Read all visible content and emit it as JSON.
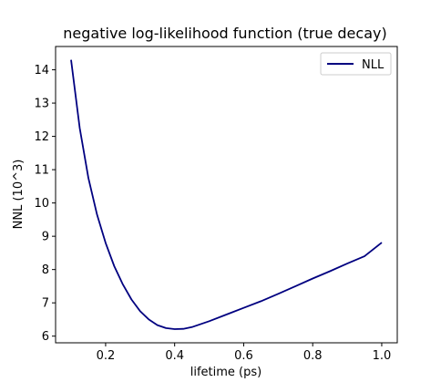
{
  "chart_data": {
    "type": "line",
    "title": "negative log-likelihood function (true decay)",
    "xlabel": "lifetime (ps)",
    "ylabel": "NNL (10^3)",
    "xlim": [
      0.055,
      1.045
    ],
    "ylim": [
      5.8,
      14.7
    ],
    "xticks": [
      0.2,
      0.4,
      0.6,
      0.8,
      1.0
    ],
    "xtick_labels": [
      "0.2",
      "0.4",
      "0.6",
      "0.8",
      "1.0"
    ],
    "yticks": [
      6,
      7,
      8,
      9,
      10,
      11,
      12,
      13,
      14
    ],
    "ytick_labels": [
      "6",
      "7",
      "8",
      "9",
      "10",
      "11",
      "12",
      "13",
      "14"
    ],
    "grid": false,
    "legend": {
      "position": "top-right",
      "entries": [
        "NLL"
      ]
    },
    "series": [
      {
        "name": "NLL",
        "color": "#000080",
        "x": [
          0.1,
          0.125,
          0.15,
          0.175,
          0.2,
          0.225,
          0.25,
          0.275,
          0.3,
          0.325,
          0.35,
          0.375,
          0.4,
          0.425,
          0.45,
          0.5,
          0.55,
          0.6,
          0.65,
          0.7,
          0.75,
          0.8,
          0.85,
          0.9,
          0.95,
          1.0
        ],
        "y": [
          14.3,
          12.25,
          10.75,
          9.65,
          8.8,
          8.1,
          7.55,
          7.1,
          6.75,
          6.5,
          6.33,
          6.24,
          6.21,
          6.22,
          6.27,
          6.45,
          6.65,
          6.85,
          7.05,
          7.27,
          7.5,
          7.73,
          7.95,
          8.18,
          8.4,
          8.81
        ]
      }
    ]
  }
}
